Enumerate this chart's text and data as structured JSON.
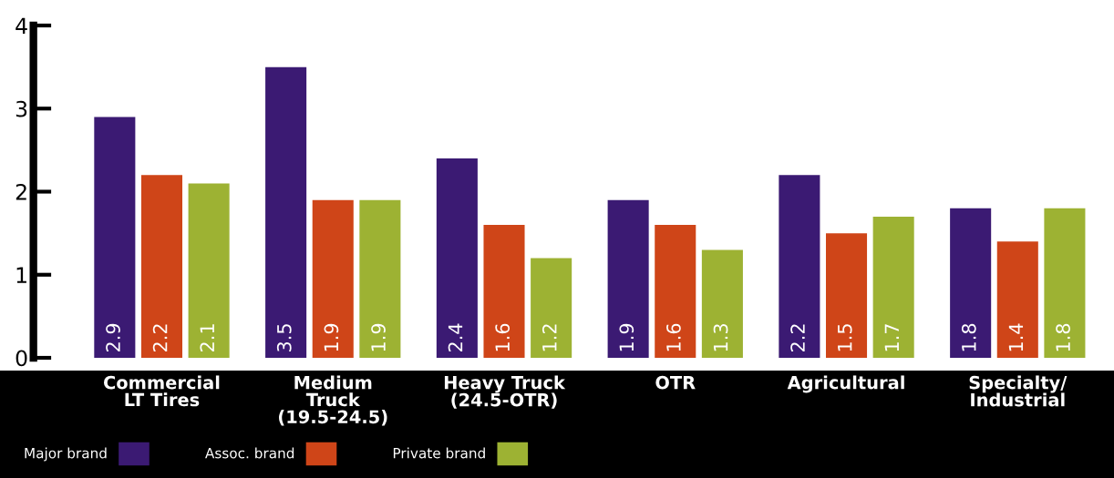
{
  "chart_data": {
    "type": "bar",
    "categories": [
      "Commercial\nLT Tires",
      "Medium\nTruck\n(19.5-24.5)",
      "Heavy Truck\n(24.5-OTR)",
      "OTR",
      "Agricultural",
      "Specialty/\nIndustrial"
    ],
    "series": [
      {
        "name": "Major brand",
        "color": "#3b1a73",
        "values": [
          2.9,
          3.5,
          2.4,
          1.9,
          2.2,
          1.8
        ]
      },
      {
        "name": "Assoc. brand",
        "color": "#cf4518",
        "values": [
          2.2,
          1.9,
          1.6,
          1.6,
          1.5,
          1.4
        ]
      },
      {
        "name": "Private brand",
        "color": "#9db233",
        "values": [
          2.1,
          1.9,
          1.2,
          1.3,
          1.7,
          1.8
        ]
      }
    ],
    "ylim": [
      0,
      4
    ],
    "yticks": [
      0,
      1,
      2,
      3,
      4
    ],
    "data_labels": true,
    "legend": "bottom",
    "grid": false
  }
}
